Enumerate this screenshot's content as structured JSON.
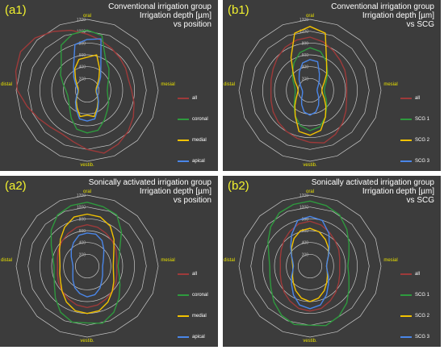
{
  "colors": {
    "background": "#3c3c3c",
    "grid": "#c8c8c8",
    "panel_id": "#f2f22e",
    "axis_label": "#e8e000",
    "title": "#ffffff"
  },
  "chart_data": [
    {
      "type": "radar",
      "panel_id": "(a1)",
      "title_lines": [
        "Conventional irrigation group",
        "Irrigation depth [µm]",
        "vs position"
      ],
      "axes": [
        "oral",
        "mesial",
        "vestib.",
        "distal"
      ],
      "radial_ticks": [
        "200",
        "400",
        "600",
        "800",
        "1000",
        "1200"
      ],
      "r_range": [
        0,
        1200
      ],
      "legend_position": "right",
      "series": [
        {
          "name": "all",
          "color": "#9e3a3a",
          "values": [
            950,
            880,
            820,
            780,
            750,
            720,
            750,
            820,
            900,
            980,
            1050,
            1100,
            1000,
            900,
            850,
            880,
            950,
            1050,
            1180,
            1250,
            1300,
            1250,
            1150,
            1050
          ]
        },
        {
          "name": "coronal",
          "color": "#2e9a3e",
          "values": [
            1020,
            960,
            620,
            520,
            420,
            360,
            340,
            360,
            420,
            480,
            580,
            700,
            720,
            680,
            540,
            420,
            360,
            340,
            360,
            420,
            520,
            620,
            880,
            980
          ]
        },
        {
          "name": "medial",
          "color": "#f2c200",
          "values": [
            560,
            620,
            420,
            280,
            200,
            160,
            150,
            160,
            200,
            260,
            340,
            460,
            420,
            460,
            340,
            260,
            200,
            160,
            150,
            160,
            200,
            280,
            420,
            540
          ]
        },
        {
          "name": "apical",
          "color": "#4a86e8",
          "values": [
            860,
            900,
            460,
            320,
            230,
            180,
            160,
            170,
            210,
            270,
            360,
            500,
            520,
            500,
            370,
            280,
            210,
            170,
            160,
            180,
            230,
            320,
            460,
            800
          ]
        }
      ]
    },
    {
      "type": "radar",
      "panel_id": "(b1)",
      "title_lines": [
        "Conventional irrigation group",
        "Irrigation depth [µm]",
        "vs SCG"
      ],
      "axes": [
        "oral",
        "mesial",
        "vestib.",
        "distal"
      ],
      "radial_ticks": [
        "200",
        "400",
        "600",
        "800",
        "1000",
        "1200"
      ],
      "r_range": [
        0,
        1200
      ],
      "legend_position": "right",
      "series": [
        {
          "name": "all",
          "color": "#9e3a3a",
          "values": [
            900,
            850,
            780,
            720,
            680,
            640,
            620,
            640,
            700,
            780,
            860,
            920,
            880,
            840,
            800,
            760,
            720,
            680,
            660,
            680,
            720,
            780,
            840,
            880
          ]
        },
        {
          "name": "SCG 1",
          "color": "#2e9a3e",
          "values": [
            720,
            680,
            560,
            420,
            320,
            260,
            240,
            260,
            320,
            400,
            520,
            640,
            680,
            620,
            500,
            380,
            300,
            260,
            250,
            270,
            330,
            420,
            540,
            660
          ]
        },
        {
          "name": "SCG 2",
          "color": "#f2c200",
          "values": [
            1080,
            1000,
            560,
            400,
            280,
            220,
            200,
            220,
            280,
            380,
            520,
            700,
            760,
            720,
            500,
            360,
            270,
            220,
            200,
            220,
            290,
            400,
            640,
            1000
          ]
        },
        {
          "name": "SCG 3",
          "color": "#4a86e8",
          "values": [
            520,
            500,
            320,
            220,
            160,
            130,
            120,
            130,
            160,
            210,
            290,
            380,
            420,
            380,
            280,
            200,
            150,
            130,
            130,
            150,
            190,
            260,
            360,
            480
          ]
        }
      ]
    },
    {
      "type": "radar",
      "panel_id": "(a2)",
      "title_lines": [
        "Sonically activated irrigation group",
        "Irrigation depth [µm]",
        "vs position"
      ],
      "axes": [
        "oral",
        "mesial",
        "vestib.",
        "distal"
      ],
      "radial_ticks": [
        "200",
        "400",
        "600",
        "800",
        "1000",
        "1200"
      ],
      "r_range": [
        0,
        1200
      ],
      "legend_position": "right",
      "series": [
        {
          "name": "all",
          "color": "#9e3a3a",
          "values": [
            700,
            680,
            640,
            600,
            560,
            520,
            500,
            520,
            560,
            600,
            640,
            680,
            700,
            680,
            640,
            600,
            560,
            520,
            500,
            520,
            560,
            600,
            640,
            680
          ]
        },
        {
          "name": "coronal",
          "color": "#2e9a3e",
          "values": [
            1080,
            1040,
            1000,
            820,
            640,
            560,
            520,
            560,
            640,
            760,
            900,
            1000,
            960,
            980,
            900,
            760,
            640,
            580,
            560,
            600,
            700,
            860,
            1000,
            1060
          ]
        },
        {
          "name": "medial",
          "color": "#f2c200",
          "values": [
            880,
            860,
            780,
            640,
            520,
            460,
            440,
            460,
            520,
            600,
            700,
            780,
            800,
            780,
            700,
            600,
            520,
            480,
            460,
            480,
            540,
            640,
            760,
            860
          ]
        },
        {
          "name": "apical",
          "color": "#4a86e8",
          "values": [
            560,
            560,
            500,
            400,
            320,
            280,
            260,
            270,
            300,
            350,
            430,
            500,
            520,
            480,
            420,
            340,
            280,
            250,
            240,
            260,
            310,
            380,
            460,
            540
          ]
        }
      ]
    },
    {
      "type": "radar",
      "panel_id": "(b2)",
      "title_lines": [
        "Sonically activated irrigation group",
        "Irrigation depth [µm]",
        "vs SCG"
      ],
      "axes": [
        "oral",
        "mesial",
        "vestib.",
        "distal"
      ],
      "radial_ticks": [
        "200",
        "400",
        "600",
        "800",
        "1000",
        "1200"
      ],
      "r_range": [
        0,
        1200
      ],
      "legend_position": "right",
      "series": [
        {
          "name": "all",
          "color": "#9e3a3a",
          "values": [
            760,
            720,
            660,
            600,
            560,
            520,
            500,
            520,
            560,
            620,
            680,
            740,
            760,
            740,
            680,
            620,
            560,
            520,
            500,
            520,
            560,
            620,
            680,
            740
          ]
        },
        {
          "name": "SCG 1",
          "color": "#2e9a3e",
          "values": [
            1100,
            1060,
            1000,
            880,
            760,
            680,
            640,
            680,
            760,
            880,
            980,
            1040,
            1000,
            1020,
            960,
            860,
            760,
            700,
            680,
            720,
            820,
            940,
            1040,
            1080
          ]
        },
        {
          "name": "SCG 2",
          "color": "#f2c200",
          "values": [
            640,
            600,
            520,
            440,
            360,
            300,
            280,
            300,
            340,
            400,
            480,
            560,
            600,
            560,
            480,
            400,
            340,
            300,
            290,
            310,
            360,
            440,
            540,
            620
          ]
        },
        {
          "name": "SCG 3",
          "color": "#4a86e8",
          "values": [
            840,
            800,
            640,
            460,
            360,
            300,
            280,
            300,
            360,
            440,
            560,
            680,
            720,
            680,
            560,
            440,
            360,
            300,
            280,
            300,
            360,
            460,
            620,
            800
          ]
        }
      ]
    }
  ]
}
